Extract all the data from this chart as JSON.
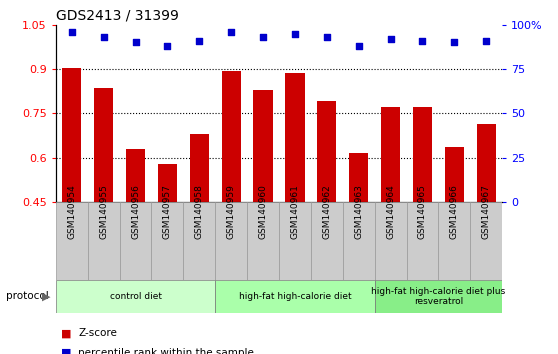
{
  "title": "GDS2413 / 31399",
  "samples": [
    "GSM140954",
    "GSM140955",
    "GSM140956",
    "GSM140957",
    "GSM140958",
    "GSM140959",
    "GSM140960",
    "GSM140961",
    "GSM140962",
    "GSM140963",
    "GSM140964",
    "GSM140965",
    "GSM140966",
    "GSM140967"
  ],
  "z_scores": [
    0.905,
    0.835,
    0.63,
    0.578,
    0.68,
    0.895,
    0.83,
    0.885,
    0.79,
    0.615,
    0.77,
    0.77,
    0.635,
    0.715
  ],
  "percentile_ranks": [
    96,
    93,
    90,
    88,
    91,
    96,
    93,
    95,
    93,
    88,
    92,
    91,
    90,
    91
  ],
  "bar_color": "#cc0000",
  "dot_color": "#0000cc",
  "ylim_left": [
    0.45,
    1.05
  ],
  "ylim_right": [
    0,
    100
  ],
  "yticks_left": [
    0.45,
    0.6,
    0.75,
    0.9,
    1.05
  ],
  "yticks_right": [
    0,
    25,
    50,
    75,
    100
  ],
  "ytick_labels_right": [
    "0",
    "25",
    "50",
    "75",
    "100%"
  ],
  "gridlines": [
    0.6,
    0.75,
    0.9
  ],
  "protocol_groups": [
    {
      "label": "control diet",
      "start": 0,
      "end": 4,
      "color": "#ccffcc"
    },
    {
      "label": "high-fat high-calorie diet",
      "start": 5,
      "end": 9,
      "color": "#aaffaa"
    },
    {
      "label": "high-fat high-calorie diet plus\nresveratrol",
      "start": 10,
      "end": 13,
      "color": "#88ee88"
    }
  ],
  "legend_items": [
    {
      "label": "Z-score",
      "color": "#cc0000"
    },
    {
      "label": "percentile rank within the sample",
      "color": "#0000cc"
    }
  ],
  "protocol_label": "protocol",
  "ticklabel_bg": "#cccccc"
}
